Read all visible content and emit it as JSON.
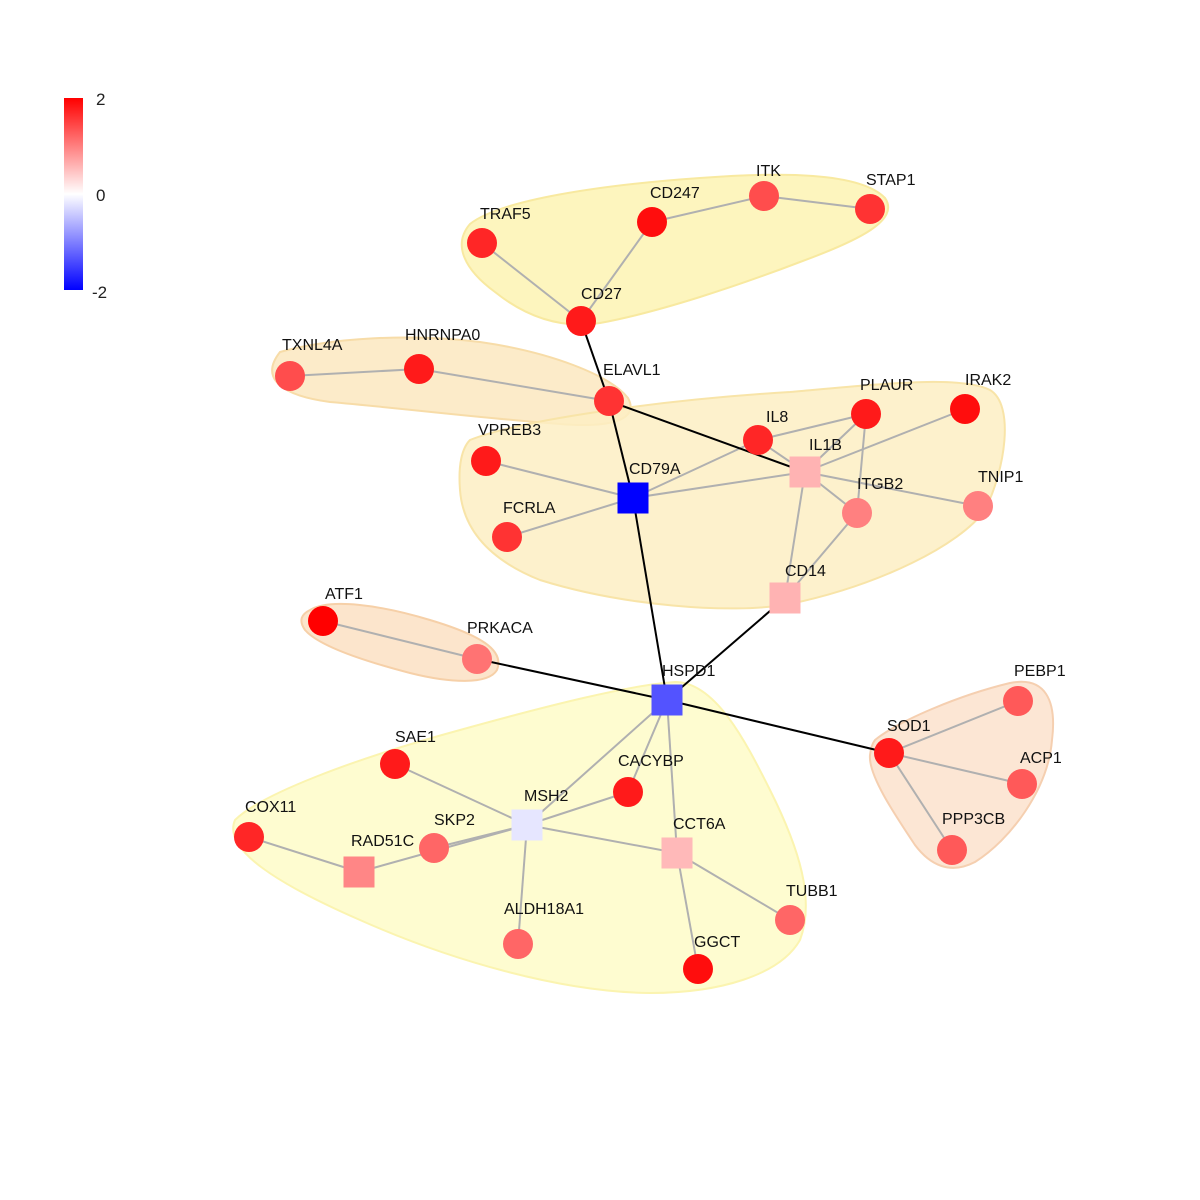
{
  "legend": {
    "max_label": "2",
    "mid_label": "0",
    "min_label": "-2",
    "colors": {
      "high": "#ff0000",
      "mid": "#ffffff",
      "low": "#0000ff"
    }
  },
  "edge_colors": {
    "intra": "#b0b0b0",
    "inter": "#000000"
  },
  "modules": [
    {
      "id": "m1",
      "fill": "#fdf3b3",
      "stroke": "#f8e9a0",
      "members": [
        "TRAF5",
        "CD247",
        "ITK",
        "STAP1",
        "CD27"
      ]
    },
    {
      "id": "m2",
      "fill": "#fce8c0",
      "stroke": "#f7dca8",
      "members": [
        "TXNL4A",
        "HNRNPA0",
        "ELAVL1"
      ]
    },
    {
      "id": "m3",
      "fill": "#fdefc3",
      "stroke": "#f8e4a8",
      "members": [
        "VPREB3",
        "CD79A",
        "FCRLA",
        "IL8",
        "IL1B",
        "PLAUR",
        "IRAK2",
        "ITGB2",
        "TNIP1",
        "CD14"
      ]
    },
    {
      "id": "m4",
      "fill": "#fce0c3",
      "stroke": "#f6d0a8",
      "members": [
        "ATF1",
        "PRKACA"
      ]
    },
    {
      "id": "m5",
      "fill": "#fefcc8",
      "stroke": "#fbf4b0",
      "members": [
        "HSPD1",
        "SAE1",
        "CACYBP",
        "MSH2",
        "COX11",
        "RAD51C",
        "SKP2",
        "CCT6A",
        "ALDH18A1",
        "TUBB1",
        "GGCT"
      ]
    },
    {
      "id": "m6",
      "fill": "#fce2cc",
      "stroke": "#f5cfb0",
      "members": [
        "SOD1",
        "PEBP1",
        "ACP1",
        "PPP3CB"
      ]
    }
  ],
  "nodes": [
    {
      "id": "TRAF5",
      "label": "TRAF5",
      "shape": "circle",
      "value": 1.7
    },
    {
      "id": "CD247",
      "label": "CD247",
      "shape": "circle",
      "value": 1.9
    },
    {
      "id": "ITK",
      "label": "ITK",
      "shape": "circle",
      "value": 1.4
    },
    {
      "id": "STAP1",
      "label": "STAP1",
      "shape": "circle",
      "value": 1.6
    },
    {
      "id": "CD27",
      "label": "CD27",
      "shape": "circle",
      "value": 1.8
    },
    {
      "id": "TXNL4A",
      "label": "TXNL4A",
      "shape": "circle",
      "value": 1.4
    },
    {
      "id": "HNRNPA0",
      "label": "HNRNPA0",
      "shape": "circle",
      "value": 1.8
    },
    {
      "id": "ELAVL1",
      "label": "ELAVL1",
      "shape": "circle",
      "value": 1.6
    },
    {
      "id": "VPREB3",
      "label": "VPREB3",
      "shape": "circle",
      "value": 1.8
    },
    {
      "id": "CD79A",
      "label": "CD79A",
      "shape": "square",
      "value": -2.0
    },
    {
      "id": "FCRLA",
      "label": "FCRLA",
      "shape": "circle",
      "value": 1.6
    },
    {
      "id": "IL8",
      "label": "IL8",
      "shape": "circle",
      "value": 1.7
    },
    {
      "id": "IL1B",
      "label": "IL1B",
      "shape": "square",
      "value": 0.6
    },
    {
      "id": "PLAUR",
      "label": "PLAUR",
      "shape": "circle",
      "value": 1.8
    },
    {
      "id": "IRAK2",
      "label": "IRAK2",
      "shape": "circle",
      "value": 1.9
    },
    {
      "id": "ITGB2",
      "label": "ITGB2",
      "shape": "circle",
      "value": 1.0
    },
    {
      "id": "TNIP1",
      "label": "TNIP1",
      "shape": "circle",
      "value": 1.0
    },
    {
      "id": "CD14",
      "label": "CD14",
      "shape": "square",
      "value": 0.6
    },
    {
      "id": "ATF1",
      "label": "ATF1",
      "shape": "circle",
      "value": 2.0
    },
    {
      "id": "PRKACA",
      "label": "PRKACA",
      "shape": "circle",
      "value": 1.1
    },
    {
      "id": "HSPD1",
      "label": "HSPD1",
      "shape": "square",
      "value": -1.35
    },
    {
      "id": "SAE1",
      "label": "SAE1",
      "shape": "circle",
      "value": 1.8
    },
    {
      "id": "CACYBP",
      "label": "CACYBP",
      "shape": "circle",
      "value": 1.8
    },
    {
      "id": "MSH2",
      "label": "MSH2",
      "shape": "square",
      "value": -0.2
    },
    {
      "id": "COX11",
      "label": "COX11",
      "shape": "circle",
      "value": 1.7
    },
    {
      "id": "RAD51C",
      "label": "RAD51C",
      "shape": "square",
      "value": 0.95
    },
    {
      "id": "SKP2",
      "label": "SKP2",
      "shape": "circle",
      "value": 1.2
    },
    {
      "id": "CCT6A",
      "label": "CCT6A",
      "shape": "square",
      "value": 0.55
    },
    {
      "id": "ALDH18A1",
      "label": "ALDH18A1",
      "shape": "circle",
      "value": 1.2
    },
    {
      "id": "TUBB1",
      "label": "TUBB1",
      "shape": "circle",
      "value": 1.2
    },
    {
      "id": "GGCT",
      "label": "GGCT",
      "shape": "circle",
      "value": 1.9
    },
    {
      "id": "SOD1",
      "label": "SOD1",
      "shape": "circle",
      "value": 1.8
    },
    {
      "id": "PEBP1",
      "label": "PEBP1",
      "shape": "circle",
      "value": 1.3
    },
    {
      "id": "ACP1",
      "label": "ACP1",
      "shape": "circle",
      "value": 1.3
    },
    {
      "id": "PPP3CB",
      "label": "PPP3CB",
      "shape": "circle",
      "value": 1.3
    }
  ],
  "edges": [
    {
      "source": "TRAF5",
      "target": "CD27",
      "kind": "intra"
    },
    {
      "source": "CD27",
      "target": "CD247",
      "kind": "intra"
    },
    {
      "source": "CD247",
      "target": "ITK",
      "kind": "intra"
    },
    {
      "source": "ITK",
      "target": "STAP1",
      "kind": "intra"
    },
    {
      "source": "TXNL4A",
      "target": "HNRNPA0",
      "kind": "intra"
    },
    {
      "source": "HNRNPA0",
      "target": "ELAVL1",
      "kind": "intra"
    },
    {
      "source": "VPREB3",
      "target": "CD79A",
      "kind": "intra"
    },
    {
      "source": "FCRLA",
      "target": "CD79A",
      "kind": "intra"
    },
    {
      "source": "CD79A",
      "target": "IL8",
      "kind": "intra"
    },
    {
      "source": "CD79A",
      "target": "IL1B",
      "kind": "intra"
    },
    {
      "source": "IL8",
      "target": "IL1B",
      "kind": "intra"
    },
    {
      "source": "IL8",
      "target": "PLAUR",
      "kind": "intra"
    },
    {
      "source": "IL1B",
      "target": "PLAUR",
      "kind": "intra"
    },
    {
      "source": "IL1B",
      "target": "IRAK2",
      "kind": "intra"
    },
    {
      "source": "IL1B",
      "target": "ITGB2",
      "kind": "intra"
    },
    {
      "source": "IL1B",
      "target": "TNIP1",
      "kind": "intra"
    },
    {
      "source": "IL1B",
      "target": "CD14",
      "kind": "intra"
    },
    {
      "source": "PLAUR",
      "target": "ITGB2",
      "kind": "intra"
    },
    {
      "source": "ITGB2",
      "target": "CD14",
      "kind": "intra"
    },
    {
      "source": "ATF1",
      "target": "PRKACA",
      "kind": "intra"
    },
    {
      "source": "HSPD1",
      "target": "MSH2",
      "kind": "intra"
    },
    {
      "source": "HSPD1",
      "target": "CACYBP",
      "kind": "intra"
    },
    {
      "source": "HSPD1",
      "target": "CCT6A",
      "kind": "intra"
    },
    {
      "source": "SAE1",
      "target": "MSH2",
      "kind": "intra"
    },
    {
      "source": "MSH2",
      "target": "CACYBP",
      "kind": "intra"
    },
    {
      "source": "MSH2",
      "target": "SKP2",
      "kind": "intra"
    },
    {
      "source": "MSH2",
      "target": "RAD51C",
      "kind": "intra"
    },
    {
      "source": "MSH2",
      "target": "CCT6A",
      "kind": "intra"
    },
    {
      "source": "MSH2",
      "target": "ALDH18A1",
      "kind": "intra"
    },
    {
      "source": "COX11",
      "target": "RAD51C",
      "kind": "intra"
    },
    {
      "source": "CCT6A",
      "target": "TUBB1",
      "kind": "intra"
    },
    {
      "source": "CCT6A",
      "target": "GGCT",
      "kind": "intra"
    },
    {
      "source": "SOD1",
      "target": "PEBP1",
      "kind": "intra"
    },
    {
      "source": "SOD1",
      "target": "ACP1",
      "kind": "intra"
    },
    {
      "source": "SOD1",
      "target": "PPP3CB",
      "kind": "intra"
    },
    {
      "source": "CD27",
      "target": "ELAVL1",
      "kind": "inter"
    },
    {
      "source": "ELAVL1",
      "target": "CD79A",
      "kind": "inter"
    },
    {
      "source": "ELAVL1",
      "target": "IL1B",
      "kind": "inter"
    },
    {
      "source": "CD79A",
      "target": "HSPD1",
      "kind": "inter"
    },
    {
      "source": "CD14",
      "target": "HSPD1",
      "kind": "inter"
    },
    {
      "source": "PRKACA",
      "target": "HSPD1",
      "kind": "inter"
    },
    {
      "source": "HSPD1",
      "target": "SOD1",
      "kind": "inter"
    }
  ]
}
